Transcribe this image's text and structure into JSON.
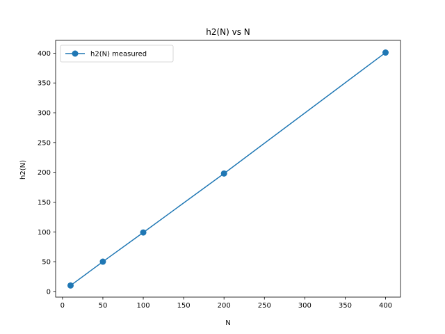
{
  "chart_data": {
    "type": "line",
    "title": "h2(N) vs N",
    "xlabel": "N",
    "ylabel": "h2(N)",
    "xlim": [
      -8.5,
      418.5
    ],
    "ylim": [
      -9.5,
      421.5
    ],
    "xticks": [
      0,
      50,
      100,
      150,
      200,
      250,
      300,
      350,
      400
    ],
    "yticks": [
      0,
      50,
      100,
      150,
      200,
      250,
      300,
      350,
      400
    ],
    "grid": false,
    "legend_position": "top-left",
    "series": [
      {
        "name": "h2(N) measured",
        "color": "#1f77b4",
        "marker": "circle",
        "x": [
          10,
          50,
          100,
          200,
          400
        ],
        "y": [
          10,
          50,
          99,
          198,
          401
        ]
      }
    ]
  }
}
